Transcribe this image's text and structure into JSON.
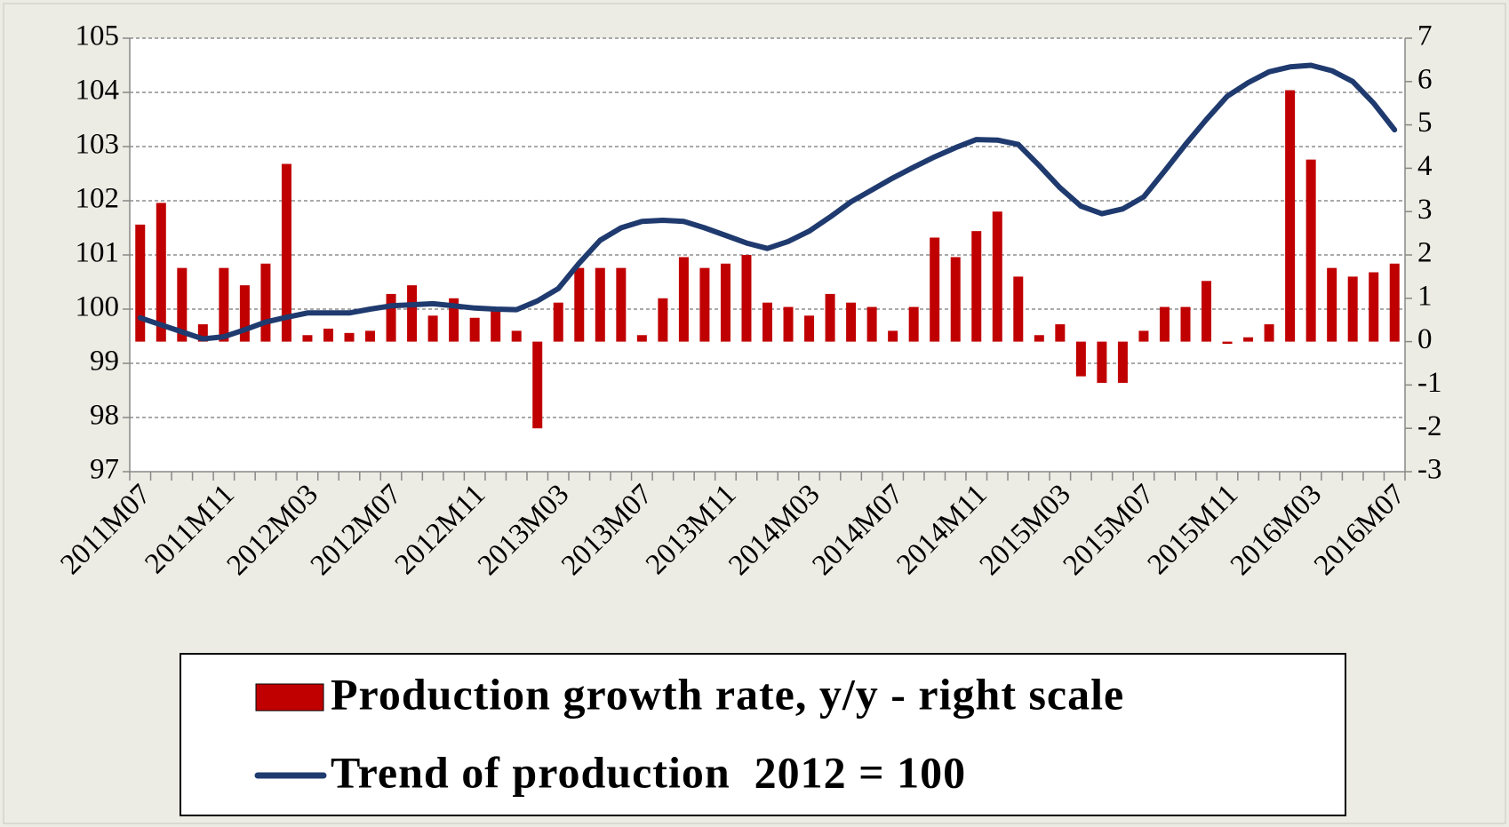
{
  "chart_data": {
    "type": "bar",
    "categories": [
      "2011M07",
      null,
      null,
      null,
      "2011M11",
      null,
      null,
      null,
      "2012M03",
      null,
      null,
      null,
      "2012M07",
      null,
      null,
      null,
      "2012M11",
      null,
      null,
      null,
      "2013M03",
      null,
      null,
      null,
      "2013M07",
      null,
      null,
      null,
      "2013M11",
      null,
      null,
      null,
      "2014M03",
      null,
      null,
      null,
      "2014M07",
      null,
      null,
      null,
      "2014M11",
      null,
      null,
      null,
      "2015M03",
      null,
      null,
      null,
      "2015M07",
      null,
      null,
      null,
      "2015M11",
      null,
      null,
      null,
      "2016M03",
      null,
      null,
      null,
      "2016M07"
    ],
    "series": [
      {
        "name": "Production growth rate, y/y - right scale",
        "type": "bar",
        "axis": "y2",
        "color": "#c00000",
        "values": [
          2.7,
          3.2,
          1.7,
          0.4,
          1.7,
          1.3,
          1.8,
          4.1,
          0.15,
          0.3,
          0.2,
          0.25,
          1.1,
          1.3,
          0.6,
          1.0,
          0.55,
          0.75,
          0.25,
          -2.0,
          0.9,
          1.7,
          1.7,
          1.7,
          0.15,
          1.0,
          1.95,
          1.7,
          1.8,
          2.0,
          0.9,
          0.8,
          0.6,
          1.1,
          0.9,
          0.8,
          0.25,
          0.8,
          2.4,
          1.95,
          2.55,
          3.0,
          1.5,
          0.15,
          0.4,
          -0.8,
          -0.95,
          -0.95,
          0.25,
          0.8,
          0.8,
          1.4,
          -0.05,
          0.1,
          0.4,
          5.8,
          4.2,
          1.7,
          1.5,
          1.6,
          1.8
        ]
      },
      {
        "name": "Trend of production  2012 = 100",
        "type": "line",
        "color": "#1f3a6e",
        "values": [
          99.84,
          99.71,
          99.58,
          99.45,
          99.49,
          99.62,
          99.76,
          99.85,
          99.93,
          99.93,
          99.93,
          100.0,
          100.06,
          100.08,
          100.1,
          100.06,
          100.02,
          100.0,
          99.99,
          100.15,
          100.38,
          100.85,
          101.27,
          101.5,
          101.62,
          101.64,
          101.62,
          101.5,
          101.36,
          101.22,
          101.12,
          101.25,
          101.44,
          101.7,
          101.98,
          102.2,
          102.42,
          102.62,
          102.81,
          102.98,
          103.13,
          103.12,
          103.04,
          102.65,
          102.24,
          101.9,
          101.76,
          101.85,
          102.07,
          102.55,
          103.04,
          103.5,
          103.93,
          104.18,
          104.38,
          104.47,
          104.5,
          104.4,
          104.2,
          103.8,
          103.31
        ]
      }
    ],
    "ylim": [
      97,
      105
    ],
    "yticks": [
      97,
      98,
      99,
      100,
      101,
      102,
      103,
      104,
      105
    ],
    "y2lim": [
      -3,
      7
    ],
    "y2ticks": [
      -3,
      -2,
      -1,
      0,
      1,
      2,
      3,
      4,
      5,
      6,
      7
    ],
    "grid": true,
    "legend": "bottom"
  }
}
